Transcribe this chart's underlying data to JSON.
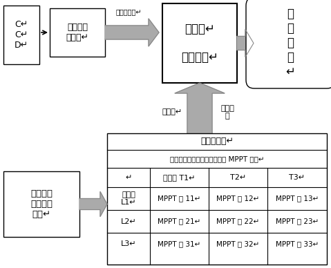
{
  "bg_color": "#ffffff",
  "ccd_text": "C↵\nC↵\nD↵",
  "img_text": "图像采集\n与分割↵",
  "comp_text": "计算机↵\n\n辅助诊断↵",
  "result_text": "得\n出\n结\n论\n↵",
  "obs_label": "量观分度値↵",
  "best_label": "最佳値↵",
  "fetch_label": "取出库\n中",
  "table_title1": "经验数据库↵",
  "table_title2": "（取光强温度各三种情况下的 MPPT 値）↵",
  "col_headers": [
    "↵",
    "温度値 T1↵",
    "T2↵",
    "T3↵"
  ],
  "row_headers": [
    "光强値\nL1↵",
    "L2↵",
    "L3↵"
  ],
  "table_data": [
    [
      "MPPT 値 11↵",
      "MPPT 値 12↵",
      "MPPT 値 13↵"
    ],
    [
      "MPPT 値 21↵",
      "MPPT 値 22↵",
      "MPPT 値 23↵"
    ],
    [
      "MPPT 値 31↵",
      "MPPT 値 32↵",
      "MPPT 値 33↵"
    ]
  ],
  "sensor_text": "双传感器\n各自参数\n输入↵"
}
